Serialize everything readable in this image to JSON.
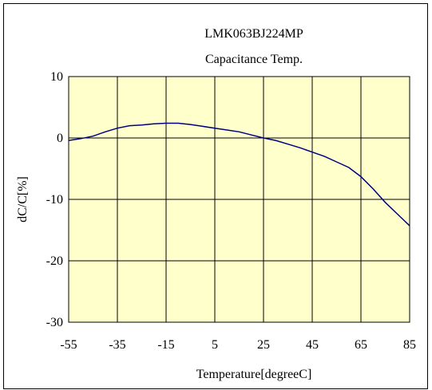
{
  "chart_data": {
    "type": "line",
    "title": "LMK063BJ224MP",
    "subtitle": "Capacitance Temp.",
    "xlabel": "Temperature[degreeC]",
    "ylabel": "dC/C[%]",
    "xlim": [
      -55,
      85
    ],
    "ylim": [
      -30,
      10
    ],
    "xticks": [
      -55,
      -35,
      -15,
      5,
      25,
      45,
      65,
      85
    ],
    "yticks": [
      10,
      0,
      -10,
      -20,
      -30
    ],
    "xtick_labels": [
      "-55",
      "-35",
      "-15",
      "5",
      "25",
      "45",
      "65",
      "85"
    ],
    "ytick_labels": [
      "10",
      "0",
      "-10",
      "-20",
      "-30"
    ],
    "grid": true,
    "plot_background": "#FFFFCC",
    "line_color": "#000080",
    "series": [
      {
        "x": [
          -55,
          -50,
          -45,
          -40,
          -35,
          -30,
          -25,
          -20,
          -15,
          -10,
          -5,
          0,
          5,
          10,
          15,
          20,
          25,
          30,
          35,
          40,
          45,
          50,
          55,
          60,
          65,
          70,
          75,
          80,
          85
        ],
        "values": [
          -0.4,
          -0.1,
          0.3,
          1.0,
          1.6,
          2.0,
          2.1,
          2.3,
          2.4,
          2.4,
          2.2,
          1.9,
          1.6,
          1.3,
          1.0,
          0.5,
          0.0,
          -0.4,
          -1.0,
          -1.6,
          -2.3,
          -3.0,
          -3.9,
          -4.8,
          -6.3,
          -8.3,
          -10.5,
          -12.4,
          -14.3
        ]
      }
    ]
  }
}
